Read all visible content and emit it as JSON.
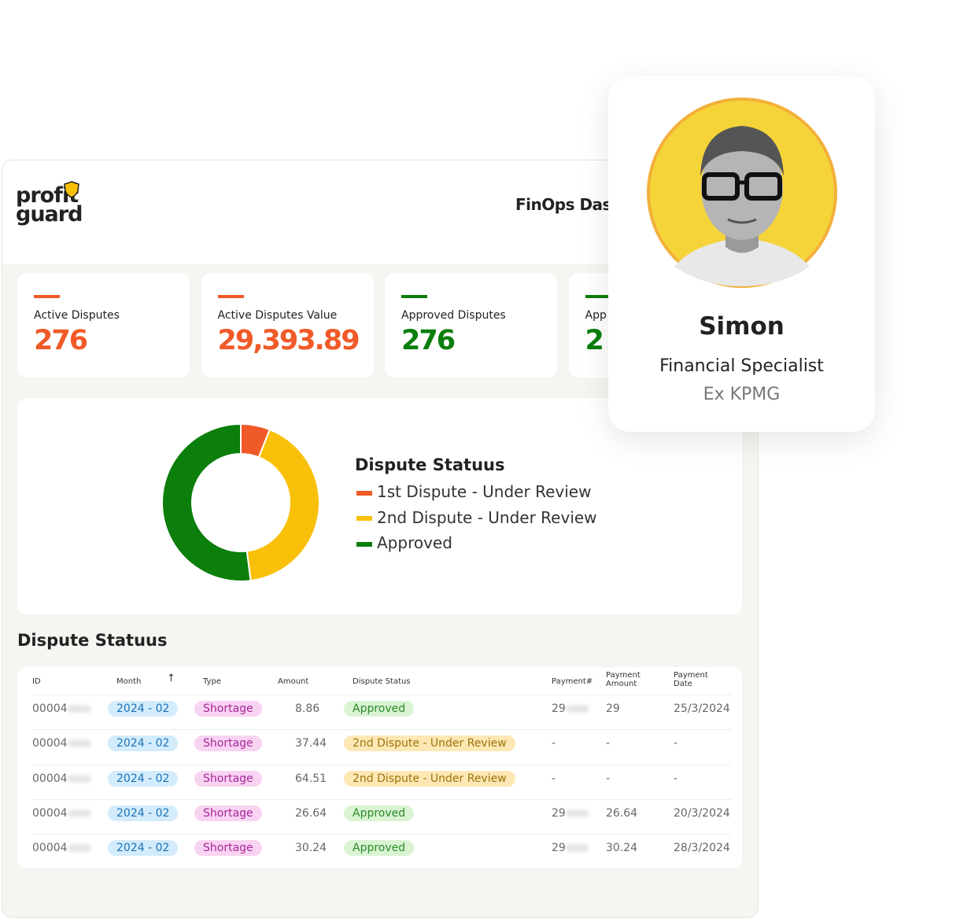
{
  "header": {
    "logo": [
      "profit",
      "guard"
    ],
    "title": "FinOps Dash"
  },
  "cards": [
    {
      "label": "Active Disputes",
      "value": "276",
      "color": "#f05a28"
    },
    {
      "label": "Active Disputes Value",
      "value": "29,393.89",
      "color": "#f05a28"
    },
    {
      "label": "Approved Disputes",
      "value": "276",
      "color": "#0b7e0b"
    },
    {
      "label": "App",
      "value": "2",
      "color": "#0b7e0b"
    }
  ],
  "chart_data": {
    "type": "pie",
    "title": "Dispute Statuus",
    "categories": [
      "1st Dispute - Under Review",
      "2nd Dispute - Under Review",
      "Approved"
    ],
    "values": [
      6,
      42,
      52
    ],
    "colors": [
      "#f05a28",
      "#f9c00a",
      "#0b7e0b"
    ],
    "donut": true
  },
  "table": {
    "title": "Dispute Statuus",
    "columns": [
      "ID",
      "Month",
      "Type",
      "Amount",
      "Dispute Status",
      "Payment#",
      "Payment Amount",
      "Payment Date"
    ],
    "rows": [
      [
        "00004",
        "2024 - 02",
        "Shortage",
        "8.86",
        "Approved",
        "29",
        "29",
        "25/3/2024"
      ],
      [
        "00004",
        "2024 - 02",
        "Shortage",
        "37.44",
        "2nd Dispute - Under Review",
        "-",
        "-",
        "-"
      ],
      [
        "00004",
        "2024 - 02",
        "Shortage",
        "64.51",
        "2nd Dispute - Under Review",
        "-",
        "-",
        "-"
      ],
      [
        "00004",
        "2024 - 02",
        "Shortage",
        "26.64",
        "Approved",
        "29",
        "26.64",
        "20/3/2024"
      ],
      [
        "00004",
        "2024 - 02",
        "Shortage",
        "30.24",
        "Approved",
        "29",
        "30.24",
        "28/3/2024"
      ]
    ]
  },
  "profile": {
    "name": "Simon",
    "role": "Financial Specialist",
    "previous": "Ex KPMG"
  }
}
